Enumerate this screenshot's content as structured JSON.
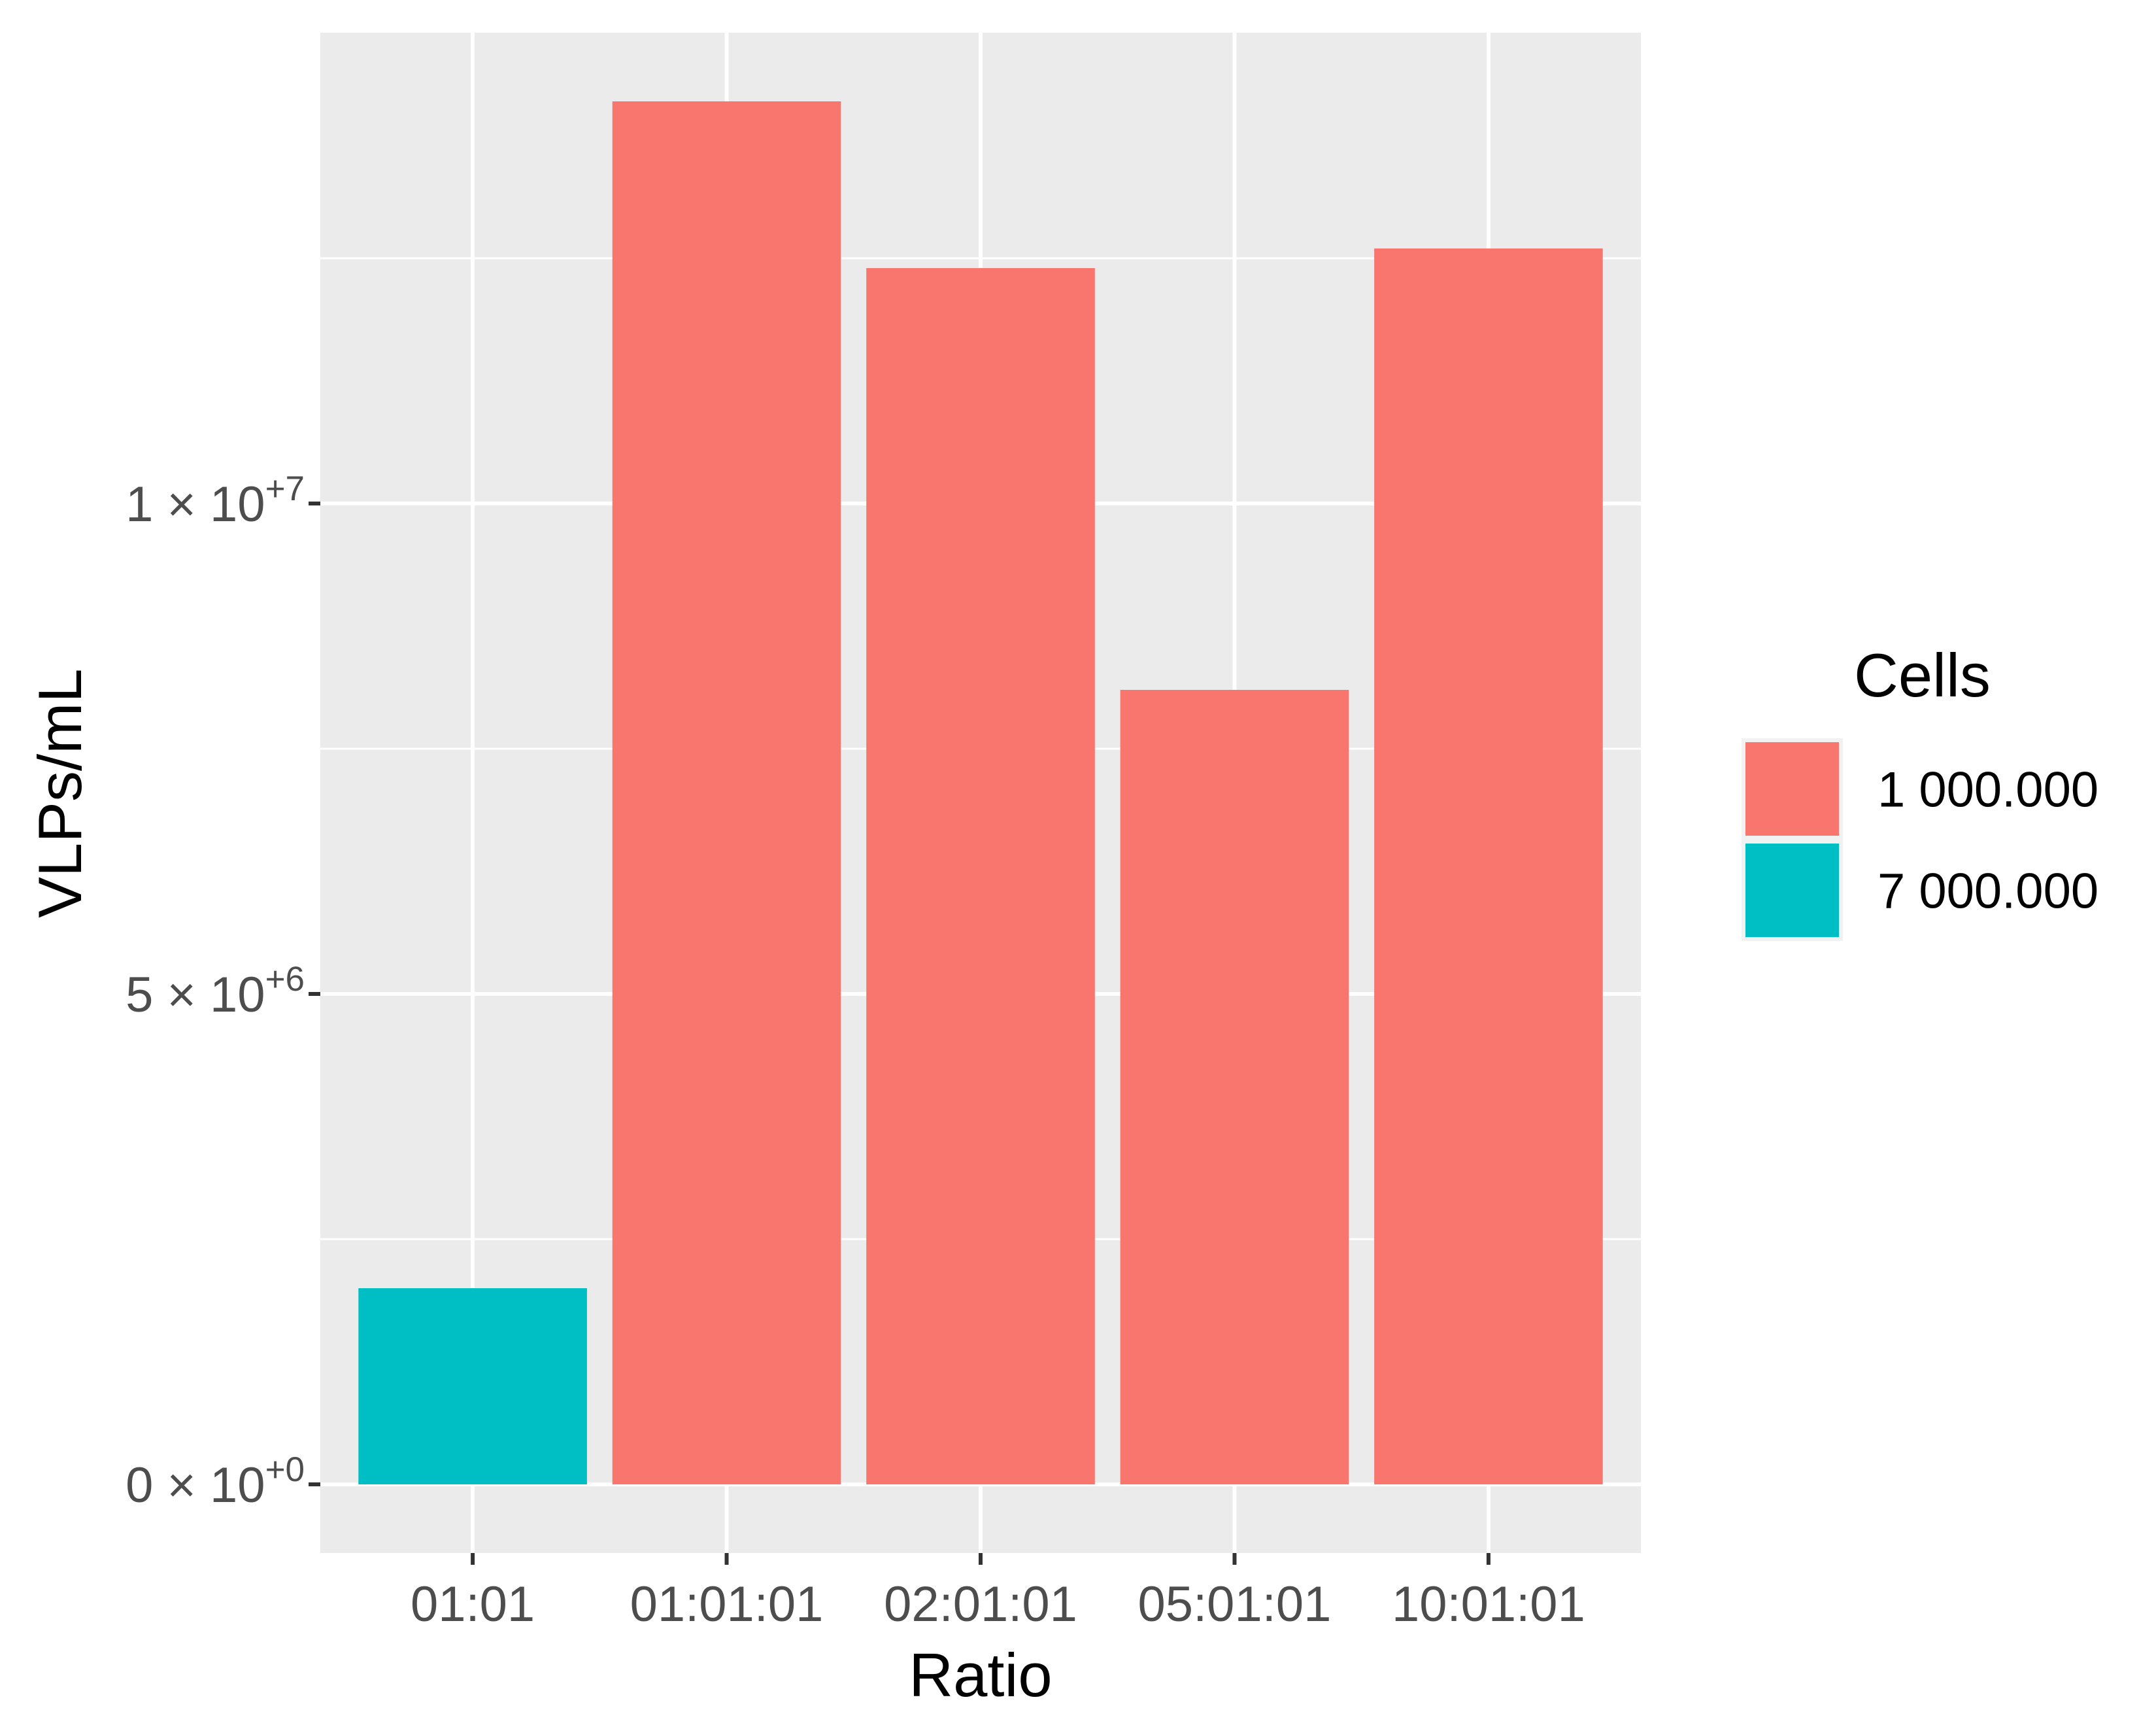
{
  "chart_data": {
    "type": "bar",
    "xlabel": "Ratio",
    "ylabel": "VLPs/mL",
    "categories": [
      "01:01",
      "01:01:01",
      "02:01:01",
      "05:01:01",
      "10:01:01"
    ],
    "values": [
      2000000,
      14100000,
      12400000,
      8100000,
      12600000
    ],
    "groups": [
      "7 000.000",
      "1 000.000",
      "1 000.000",
      "1 000.000",
      "1 000.000"
    ],
    "ylim": [
      -700000,
      14800000
    ],
    "y_major_ticks": [
      {
        "value": 0,
        "mantissa": "0",
        "times": " × 10",
        "exp": "+0"
      },
      {
        "value": 5000000,
        "mantissa": "5",
        "times": " × 10",
        "exp": "+6"
      },
      {
        "value": 10000000,
        "mantissa": "1",
        "times": " × 10",
        "exp": "+7"
      }
    ],
    "y_minor_ticks": [
      2500000,
      7500000,
      12500000
    ],
    "grid": true,
    "legend": {
      "title": "Cells",
      "position": "right",
      "items": [
        {
          "label": "1 000.000",
          "color": "#F8766D"
        },
        {
          "label": "7 000.000",
          "color": "#00BFC4"
        }
      ]
    }
  }
}
